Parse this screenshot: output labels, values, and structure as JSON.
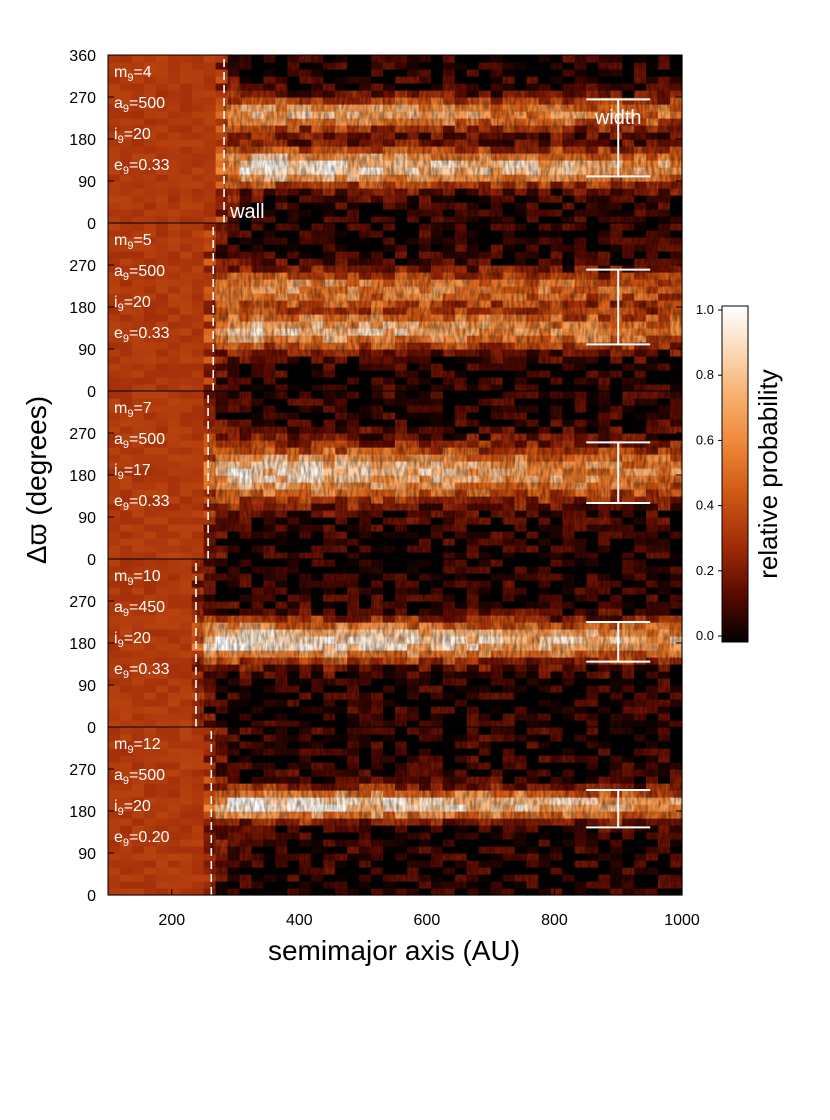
{
  "chart_data": {
    "type": "heatmap",
    "xlabel": "semimajor axis (AU)",
    "ylabel": "Δϖ (degrees)",
    "xlim": [
      100,
      1000
    ],
    "x_ticks": [
      200,
      400,
      600,
      800,
      1000
    ],
    "ylim": [
      0,
      360
    ],
    "y_ticks_top_panel": [
      0,
      90,
      180,
      270,
      360
    ],
    "y_ticks_other_panels": [
      0,
      90,
      180,
      270
    ],
    "colorbar": {
      "label": "relative probability",
      "range": [
        0.0,
        1.0
      ],
      "ticks": [
        "0.0",
        "0.2",
        "0.4",
        "0.6",
        "0.8",
        "1.0"
      ],
      "colors": [
        "#000000",
        "#5a0a00",
        "#9e2a08",
        "#d25a14",
        "#f08a3c",
        "#f8b478",
        "#fce4cc",
        "#ffffff"
      ]
    },
    "annotations": {
      "wall": "wall",
      "width": "width"
    },
    "panels": [
      {
        "m9": "4",
        "a9": "500",
        "i9": "20",
        "e9": "0.33",
        "wall_a": 282,
        "bands": [
          {
            "center": 120,
            "halfwidth": 40,
            "peak": 0.9
          },
          {
            "center": 235,
            "halfwidth": 35,
            "peak": 0.7
          }
        ],
        "width_bar": {
          "a": 900,
          "low": 100,
          "high": 265
        }
      },
      {
        "m9": "5",
        "a9": "500",
        "i9": "20",
        "e9": "0.33",
        "wall_a": 265,
        "bands": [
          {
            "center": 130,
            "halfwidth": 40,
            "peak": 0.75
          },
          {
            "center": 220,
            "halfwidth": 40,
            "peak": 0.6
          }
        ],
        "width_bar": {
          "a": 900,
          "low": 100,
          "high": 260
        }
      },
      {
        "m9": "7",
        "a9": "500",
        "i9": "17",
        "e9": "0.33",
        "wall_a": 257,
        "bands": [
          {
            "center": 185,
            "halfwidth": 60,
            "peak": 0.8
          }
        ],
        "width_bar": {
          "a": 900,
          "low": 120,
          "high": 250
        }
      },
      {
        "m9": "10",
        "a9": "450",
        "i9": "20",
        "e9": "0.33",
        "wall_a": 238,
        "bands": [
          {
            "center": 185,
            "halfwidth": 42,
            "peak": 0.95
          }
        ],
        "width_bar": {
          "a": 900,
          "low": 140,
          "high": 225
        }
      },
      {
        "m9": "12",
        "a9": "500",
        "i9": "20",
        "e9": "0.20",
        "wall_a": 262,
        "bands": [
          {
            "center": 195,
            "halfwidth": 32,
            "peak": 0.95
          }
        ],
        "width_bar": {
          "a": 900,
          "low": 145,
          "high": 225
        }
      }
    ]
  }
}
